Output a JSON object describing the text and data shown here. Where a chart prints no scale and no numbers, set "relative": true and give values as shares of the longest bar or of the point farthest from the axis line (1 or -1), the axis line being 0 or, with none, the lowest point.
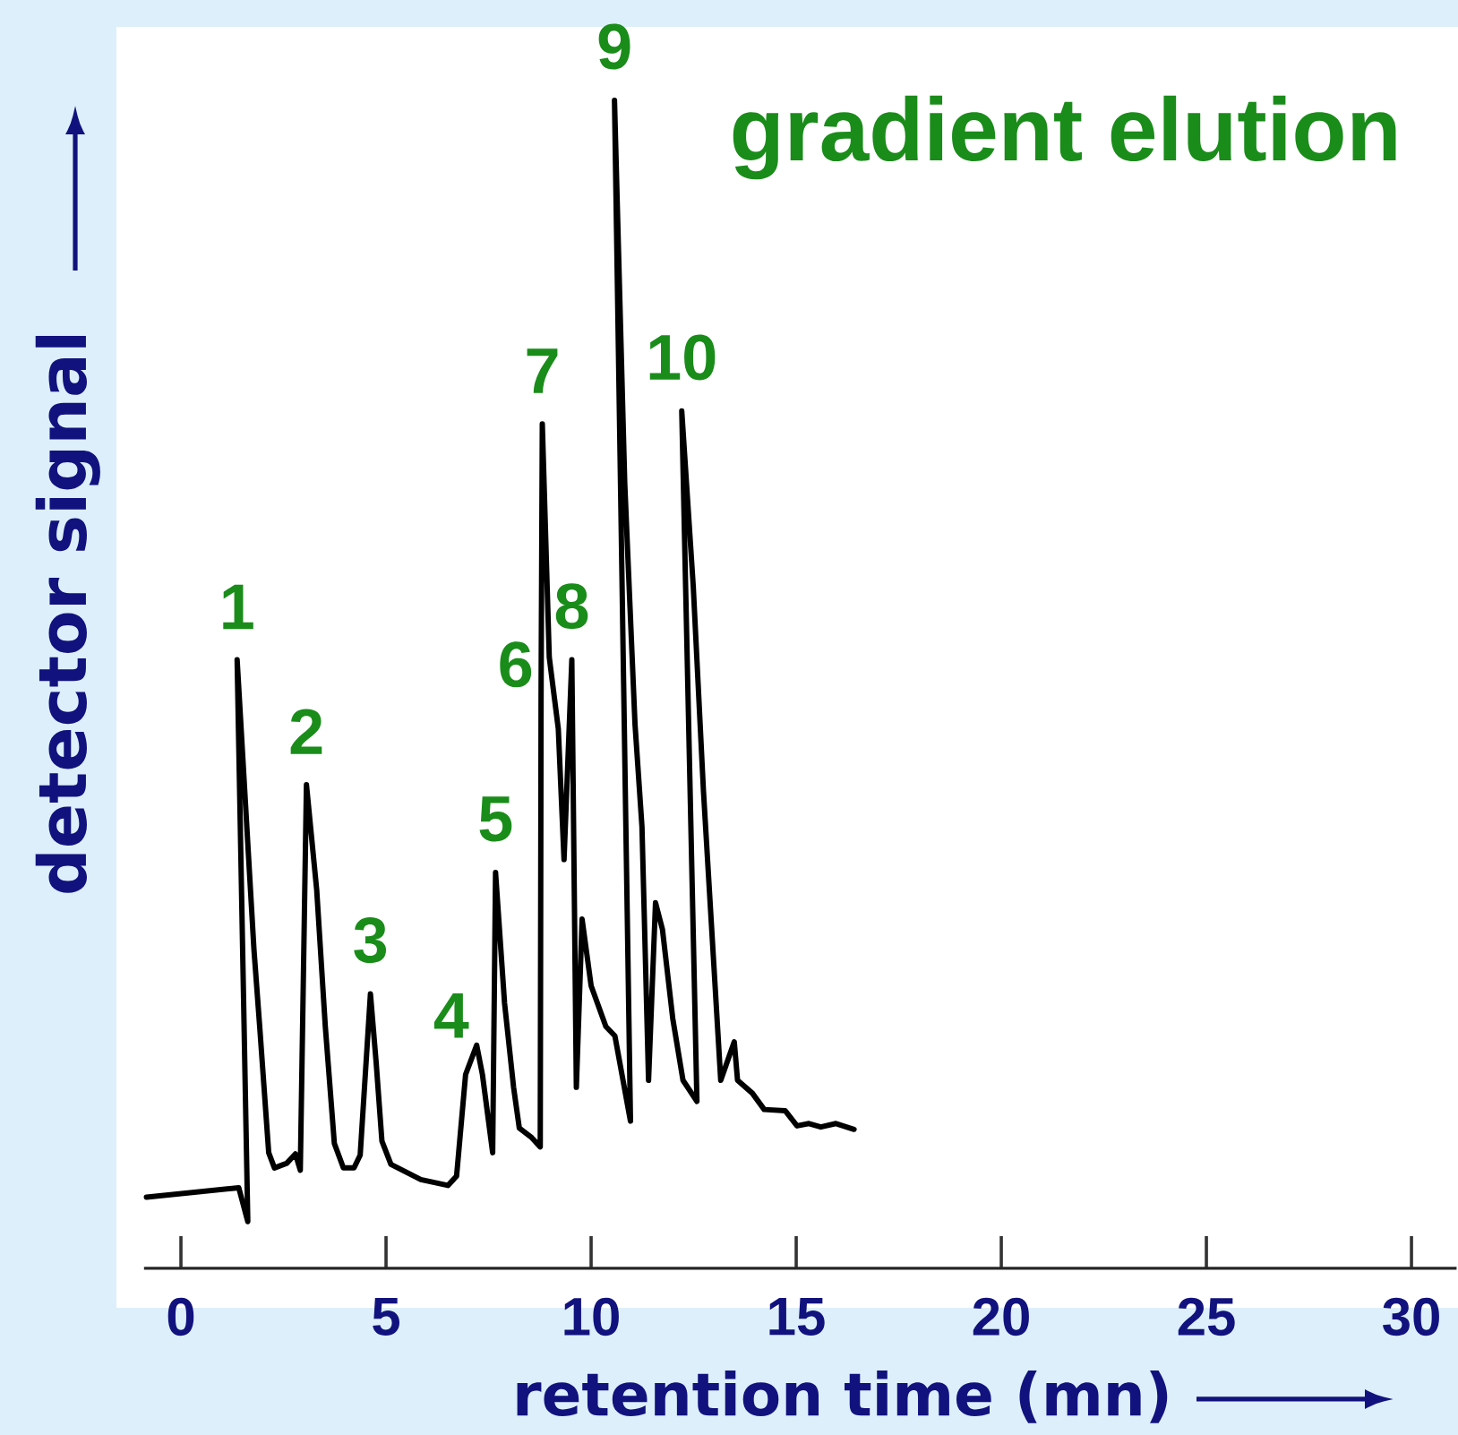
{
  "chart_data": {
    "type": "line",
    "title": "gradient elution",
    "xlabel": "retention time (mn)",
    "ylabel": "detector signal",
    "relative": true,
    "color": "#000000",
    "x": [
      -0.84,
      1.41,
      1.63,
      1.37,
      1.78,
      1.92,
      2.14,
      2.28,
      2.58,
      2.79,
      2.91,
      3.06,
      3.31,
      3.52,
      3.74,
      3.96,
      4.22,
      4.37,
      4.62,
      4.76,
      4.9,
      5.12,
      5.85,
      6.51,
      6.72,
      6.94,
      7.21,
      7.35,
      7.6,
      7.67,
      7.89,
      8.11,
      8.25,
      8.55,
      8.76,
      8.78,
      8.81,
      8.98,
      9.2,
      9.34,
      9.53,
      9.64,
      9.78,
      10.0,
      10.36,
      10.58,
      10.96,
      10.57,
      10.82,
      11.07,
      11.24,
      11.4,
      11.57,
      11.74,
      11.99,
      12.24,
      12.58,
      12.21,
      12.49,
      12.74,
      12.99,
      13.16,
      13.49,
      13.57,
      13.93,
      14.22,
      14.73,
      15.02,
      15.31,
      15.6,
      15.97,
      16.41
    ],
    "values": [
      0.061,
      0.069,
      0.04,
      0.521,
      0.273,
      0.207,
      0.099,
      0.086,
      0.09,
      0.098,
      0.084,
      0.414,
      0.324,
      0.207,
      0.107,
      0.086,
      0.086,
      0.097,
      0.235,
      0.176,
      0.109,
      0.089,
      0.076,
      0.071,
      0.079,
      0.166,
      0.191,
      0.166,
      0.099,
      0.339,
      0.227,
      0.155,
      0.12,
      0.112,
      0.104,
      0.491,
      0.723,
      0.523,
      0.462,
      0.35,
      0.521,
      0.155,
      0.299,
      0.242,
      0.207,
      0.199,
      0.126,
      1.0,
      0.672,
      0.466,
      0.378,
      0.161,
      0.313,
      0.29,
      0.214,
      0.161,
      0.143,
      0.734,
      0.584,
      0.408,
      0.261,
      0.161,
      0.194,
      0.161,
      0.15,
      0.136,
      0.135,
      0.122,
      0.124,
      0.121,
      0.124,
      0.119
    ],
    "xlim": [
      -0.9,
      31.1
    ],
    "xticks": [
      0,
      5,
      10,
      15,
      20,
      25,
      30
    ],
    "annotations": [
      {
        "text": "1",
        "x": 1.37,
        "y": 0.521
      },
      {
        "text": "2",
        "x": 3.06,
        "y": 0.414
      },
      {
        "text": "3",
        "x": 4.62,
        "y": 0.235
      },
      {
        "text": "4",
        "x": 7.21,
        "y": 0.191
      },
      {
        "text": "5",
        "x": 7.67,
        "y": 0.339
      },
      {
        "text": "6",
        "x": 8.78,
        "y": 0.491
      },
      {
        "text": "7",
        "x": 8.81,
        "y": 0.723
      },
      {
        "text": "8",
        "x": 9.53,
        "y": 0.521
      },
      {
        "text": "9",
        "x": 10.57,
        "y": 1.0
      },
      {
        "text": "10",
        "x": 12.21,
        "y": 0.734
      }
    ]
  }
}
